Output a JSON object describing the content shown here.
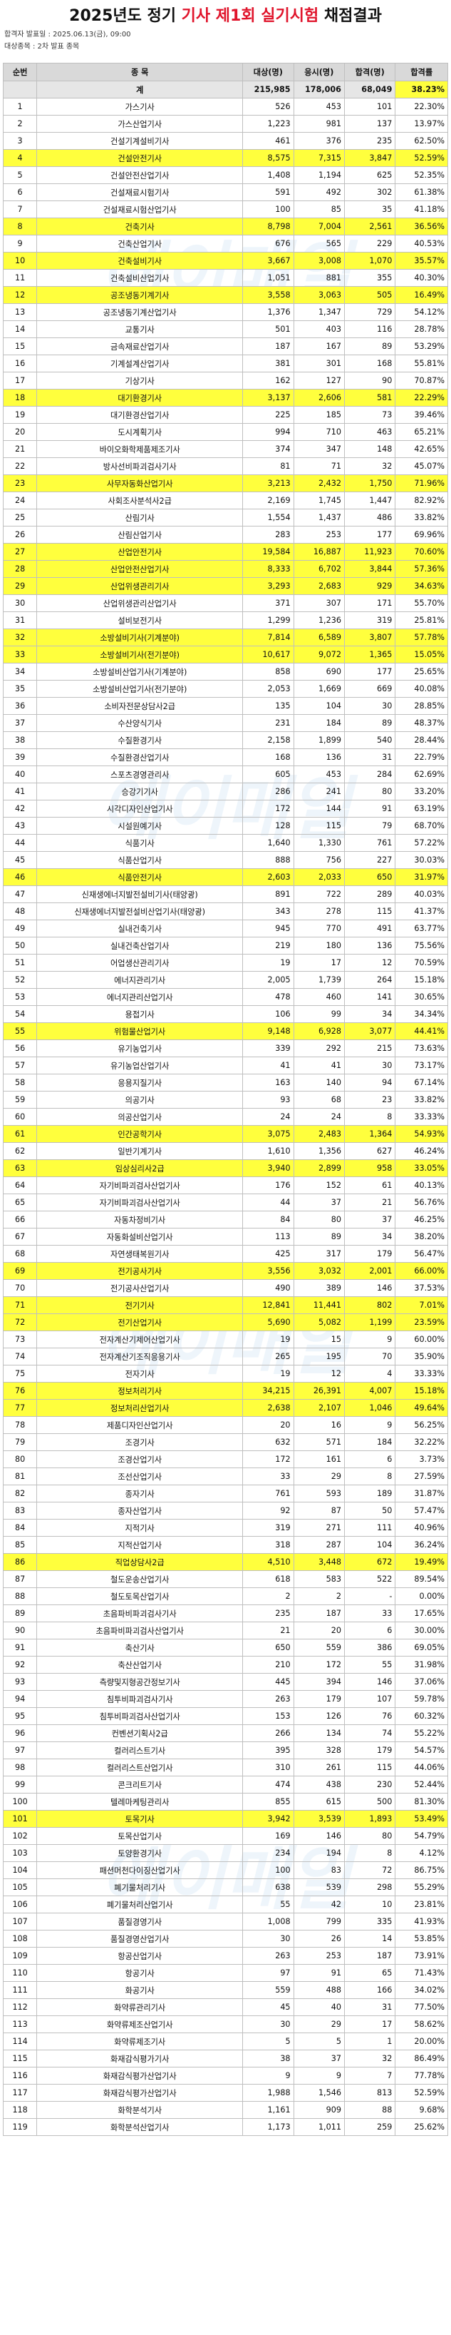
{
  "title": {
    "pre": "2025년도 정기 ",
    "red": "기사 제1회 실기시험",
    "post": " 채점결과"
  },
  "meta": {
    "line1": "합격자 발표일 : 2025.06.13(금), 09:00",
    "line2": "대상종목 : 2차 발표 종목"
  },
  "watermark": "에이매일",
  "columns": {
    "no": "순번",
    "name": "종 목",
    "applied": "대상(명)",
    "tested": "응시(명)",
    "passed": "합격(명)",
    "rate": "합격률"
  },
  "total": {
    "name": "계",
    "applied": "215,985",
    "tested": "178,006",
    "passed": "68,049",
    "rate": "38.23%"
  },
  "highlight_color": "#ffff3d",
  "rows": [
    [
      "1",
      "가스기사",
      "526",
      "453",
      "101",
      "22.30%",
      0
    ],
    [
      "2",
      "가스산업기사",
      "1,223",
      "981",
      "137",
      "13.97%",
      0
    ],
    [
      "3",
      "건설기계설비기사",
      "461",
      "376",
      "235",
      "62.50%",
      0
    ],
    [
      "4",
      "건설안전기사",
      "8,575",
      "7,315",
      "3,847",
      "52.59%",
      1
    ],
    [
      "5",
      "건설안전산업기사",
      "1,408",
      "1,194",
      "625",
      "52.35%",
      0
    ],
    [
      "6",
      "건설재료시험기사",
      "591",
      "492",
      "302",
      "61.38%",
      0
    ],
    [
      "7",
      "건설재료시험산업기사",
      "100",
      "85",
      "35",
      "41.18%",
      0
    ],
    [
      "8",
      "건축기사",
      "8,798",
      "7,004",
      "2,561",
      "36.56%",
      1
    ],
    [
      "9",
      "건축산업기사",
      "676",
      "565",
      "229",
      "40.53%",
      0
    ],
    [
      "10",
      "건축설비기사",
      "3,667",
      "3,008",
      "1,070",
      "35.57%",
      1
    ],
    [
      "11",
      "건축설비산업기사",
      "1,051",
      "881",
      "355",
      "40.30%",
      0
    ],
    [
      "12",
      "공조냉동기계기사",
      "3,558",
      "3,063",
      "505",
      "16.49%",
      1
    ],
    [
      "13",
      "공조냉동기계산업기사",
      "1,376",
      "1,347",
      "729",
      "54.12%",
      0
    ],
    [
      "14",
      "교통기사",
      "501",
      "403",
      "116",
      "28.78%",
      0
    ],
    [
      "15",
      "금속재료산업기사",
      "187",
      "167",
      "89",
      "53.29%",
      0
    ],
    [
      "16",
      "기계설계산업기사",
      "381",
      "301",
      "168",
      "55.81%",
      0
    ],
    [
      "17",
      "기상기사",
      "162",
      "127",
      "90",
      "70.87%",
      0
    ],
    [
      "18",
      "대기환경기사",
      "3,137",
      "2,606",
      "581",
      "22.29%",
      1
    ],
    [
      "19",
      "대기환경산업기사",
      "225",
      "185",
      "73",
      "39.46%",
      0
    ],
    [
      "20",
      "도시계획기사",
      "994",
      "710",
      "463",
      "65.21%",
      0
    ],
    [
      "21",
      "바이오화학제품제조기사",
      "374",
      "347",
      "148",
      "42.65%",
      0
    ],
    [
      "22",
      "방사선비파괴검사기사",
      "81",
      "71",
      "32",
      "45.07%",
      0
    ],
    [
      "23",
      "사무자동화산업기사",
      "3,213",
      "2,432",
      "1,750",
      "71.96%",
      1
    ],
    [
      "24",
      "사회조사분석사2급",
      "2,169",
      "1,745",
      "1,447",
      "82.92%",
      0
    ],
    [
      "25",
      "산림기사",
      "1,554",
      "1,437",
      "486",
      "33.82%",
      0
    ],
    [
      "26",
      "산림산업기사",
      "283",
      "253",
      "177",
      "69.96%",
      0
    ],
    [
      "27",
      "산업안전기사",
      "19,584",
      "16,887",
      "11,923",
      "70.60%",
      1
    ],
    [
      "28",
      "산업안전산업기사",
      "8,333",
      "6,702",
      "3,844",
      "57.36%",
      1
    ],
    [
      "29",
      "산업위생관리기사",
      "3,293",
      "2,683",
      "929",
      "34.63%",
      1
    ],
    [
      "30",
      "산업위생관리산업기사",
      "371",
      "307",
      "171",
      "55.70%",
      0
    ],
    [
      "31",
      "설비보전기사",
      "1,299",
      "1,236",
      "319",
      "25.81%",
      0
    ],
    [
      "32",
      "소방설비기사(기계분야)",
      "7,814",
      "6,589",
      "3,807",
      "57.78%",
      1
    ],
    [
      "33",
      "소방설비기사(전기분야)",
      "10,617",
      "9,072",
      "1,365",
      "15.05%",
      1
    ],
    [
      "34",
      "소방설비산업기사(기계분야)",
      "858",
      "690",
      "177",
      "25.65%",
      0
    ],
    [
      "35",
      "소방설비산업기사(전기분야)",
      "2,053",
      "1,669",
      "669",
      "40.08%",
      0
    ],
    [
      "36",
      "소비자전문상담사2급",
      "135",
      "104",
      "30",
      "28.85%",
      0
    ],
    [
      "37",
      "수산양식기사",
      "231",
      "184",
      "89",
      "48.37%",
      0
    ],
    [
      "38",
      "수질환경기사",
      "2,158",
      "1,899",
      "540",
      "28.44%",
      0
    ],
    [
      "39",
      "수질환경산업기사",
      "168",
      "136",
      "31",
      "22.79%",
      0
    ],
    [
      "40",
      "스포츠경영관리사",
      "605",
      "453",
      "284",
      "62.69%",
      0
    ],
    [
      "41",
      "승강기기사",
      "286",
      "241",
      "80",
      "33.20%",
      0
    ],
    [
      "42",
      "시각디자인산업기사",
      "172",
      "144",
      "91",
      "63.19%",
      0
    ],
    [
      "43",
      "시설원예기사",
      "128",
      "115",
      "79",
      "68.70%",
      0
    ],
    [
      "44",
      "식품기사",
      "1,640",
      "1,330",
      "761",
      "57.22%",
      0
    ],
    [
      "45",
      "식품산업기사",
      "888",
      "756",
      "227",
      "30.03%",
      0
    ],
    [
      "46",
      "식품안전기사",
      "2,603",
      "2,033",
      "650",
      "31.97%",
      1
    ],
    [
      "47",
      "신재생에너지발전설비기사(태양광)",
      "891",
      "722",
      "289",
      "40.03%",
      0
    ],
    [
      "48",
      "신재생에너지발전설비산업기사(태양광)",
      "343",
      "278",
      "115",
      "41.37%",
      0
    ],
    [
      "49",
      "실내건축기사",
      "945",
      "770",
      "491",
      "63.77%",
      0
    ],
    [
      "50",
      "실내건축산업기사",
      "219",
      "180",
      "136",
      "75.56%",
      0
    ],
    [
      "51",
      "어업생산관리기사",
      "19",
      "17",
      "12",
      "70.59%",
      0
    ],
    [
      "52",
      "에너지관리기사",
      "2,005",
      "1,739",
      "264",
      "15.18%",
      0
    ],
    [
      "53",
      "에너지관리산업기사",
      "478",
      "460",
      "141",
      "30.65%",
      0
    ],
    [
      "54",
      "용접기사",
      "106",
      "99",
      "34",
      "34.34%",
      0
    ],
    [
      "55",
      "위험물산업기사",
      "9,148",
      "6,928",
      "3,077",
      "44.41%",
      1
    ],
    [
      "56",
      "유기농업기사",
      "339",
      "292",
      "215",
      "73.63%",
      0
    ],
    [
      "57",
      "유기농업산업기사",
      "41",
      "41",
      "30",
      "73.17%",
      0
    ],
    [
      "58",
      "응용지질기사",
      "163",
      "140",
      "94",
      "67.14%",
      0
    ],
    [
      "59",
      "의공기사",
      "93",
      "68",
      "23",
      "33.82%",
      0
    ],
    [
      "60",
      "의공산업기사",
      "24",
      "24",
      "8",
      "33.33%",
      0
    ],
    [
      "61",
      "인간공학기사",
      "3,075",
      "2,483",
      "1,364",
      "54.93%",
      1
    ],
    [
      "62",
      "일반기계기사",
      "1,610",
      "1,356",
      "627",
      "46.24%",
      0
    ],
    [
      "63",
      "임상심리사2급",
      "3,940",
      "2,899",
      "958",
      "33.05%",
      1
    ],
    [
      "64",
      "자기비파괴검사산업기사",
      "176",
      "152",
      "61",
      "40.13%",
      0
    ],
    [
      "65",
      "자기비파괴검사산업기사",
      "44",
      "37",
      "21",
      "56.76%",
      0
    ],
    [
      "66",
      "자동차정비기사",
      "84",
      "80",
      "37",
      "46.25%",
      0
    ],
    [
      "67",
      "자동화설비산업기사",
      "113",
      "89",
      "34",
      "38.20%",
      0
    ],
    [
      "68",
      "자연생태복원기사",
      "425",
      "317",
      "179",
      "56.47%",
      0
    ],
    [
      "69",
      "전기공사기사",
      "3,556",
      "3,032",
      "2,001",
      "66.00%",
      1
    ],
    [
      "70",
      "전기공사산업기사",
      "490",
      "389",
      "146",
      "37.53%",
      0
    ],
    [
      "71",
      "전기기사",
      "12,841",
      "11,441",
      "802",
      "7.01%",
      1
    ],
    [
      "72",
      "전기산업기사",
      "5,690",
      "5,082",
      "1,199",
      "23.59%",
      1
    ],
    [
      "73",
      "전자계산기제어산업기사",
      "19",
      "15",
      "9",
      "60.00%",
      0
    ],
    [
      "74",
      "전자계산기조직응용기사",
      "265",
      "195",
      "70",
      "35.90%",
      0
    ],
    [
      "75",
      "전자기사",
      "19",
      "12",
      "4",
      "33.33%",
      0
    ],
    [
      "76",
      "정보처리기사",
      "34,215",
      "26,391",
      "4,007",
      "15.18%",
      1
    ],
    [
      "77",
      "정보처리산업기사",
      "2,638",
      "2,107",
      "1,046",
      "49.64%",
      1
    ],
    [
      "78",
      "제품디자인산업기사",
      "20",
      "16",
      "9",
      "56.25%",
      0
    ],
    [
      "79",
      "조경기사",
      "632",
      "571",
      "184",
      "32.22%",
      0
    ],
    [
      "80",
      "조경산업기사",
      "172",
      "161",
      "6",
      "3.73%",
      0
    ],
    [
      "81",
      "조선산업기사",
      "33",
      "29",
      "8",
      "27.59%",
      0
    ],
    [
      "82",
      "종자기사",
      "761",
      "593",
      "189",
      "31.87%",
      0
    ],
    [
      "83",
      "종자산업기사",
      "92",
      "87",
      "50",
      "57.47%",
      0
    ],
    [
      "84",
      "지적기사",
      "319",
      "271",
      "111",
      "40.96%",
      0
    ],
    [
      "85",
      "지적산업기사",
      "318",
      "287",
      "104",
      "36.24%",
      0
    ],
    [
      "86",
      "직업상담사2급",
      "4,510",
      "3,448",
      "672",
      "19.49%",
      1
    ],
    [
      "87",
      "철도운송산업기사",
      "618",
      "583",
      "522",
      "89.54%",
      0
    ],
    [
      "88",
      "철도토목산업기사",
      "2",
      "2",
      "-",
      "0.00%",
      0
    ],
    [
      "89",
      "초음파비파괴검사기사",
      "235",
      "187",
      "33",
      "17.65%",
      0
    ],
    [
      "90",
      "초음파비파괴검사산업기사",
      "21",
      "20",
      "6",
      "30.00%",
      0
    ],
    [
      "91",
      "축산기사",
      "650",
      "559",
      "386",
      "69.05%",
      0
    ],
    [
      "92",
      "축산산업기사",
      "210",
      "172",
      "55",
      "31.98%",
      0
    ],
    [
      "93",
      "측량및지형공간정보기사",
      "445",
      "394",
      "146",
      "37.06%",
      0
    ],
    [
      "94",
      "침투비파괴검사기사",
      "263",
      "179",
      "107",
      "59.78%",
      0
    ],
    [
      "95",
      "침투비파괴검사산업기사",
      "153",
      "126",
      "76",
      "60.32%",
      0
    ],
    [
      "96",
      "컨벤션기획사2급",
      "266",
      "134",
      "74",
      "55.22%",
      0
    ],
    [
      "97",
      "컬러리스트기사",
      "395",
      "328",
      "179",
      "54.57%",
      0
    ],
    [
      "98",
      "컬러리스트산업기사",
      "310",
      "261",
      "115",
      "44.06%",
      0
    ],
    [
      "99",
      "콘크리트기사",
      "474",
      "438",
      "230",
      "52.44%",
      0
    ],
    [
      "100",
      "텔레마케팅관리사",
      "855",
      "615",
      "500",
      "81.30%",
      0
    ],
    [
      "101",
      "토목기사",
      "3,942",
      "3,539",
      "1,893",
      "53.49%",
      1
    ],
    [
      "102",
      "토목산업기사",
      "169",
      "146",
      "80",
      "54.79%",
      0
    ],
    [
      "103",
      "토양환경기사",
      "234",
      "194",
      "8",
      "4.12%",
      0
    ],
    [
      "104",
      "패션머천다이징산업기사",
      "100",
      "83",
      "72",
      "86.75%",
      0
    ],
    [
      "105",
      "폐기물처리기사",
      "638",
      "539",
      "298",
      "55.29%",
      0
    ],
    [
      "106",
      "폐기물처리산업기사",
      "55",
      "42",
      "10",
      "23.81%",
      0
    ],
    [
      "107",
      "품질경영기사",
      "1,008",
      "799",
      "335",
      "41.93%",
      0
    ],
    [
      "108",
      "품질경영산업기사",
      "30",
      "26",
      "14",
      "53.85%",
      0
    ],
    [
      "109",
      "항공산업기사",
      "263",
      "253",
      "187",
      "73.91%",
      0
    ],
    [
      "110",
      "항공기사",
      "97",
      "91",
      "65",
      "71.43%",
      0
    ],
    [
      "111",
      "화공기사",
      "559",
      "488",
      "166",
      "34.02%",
      0
    ],
    [
      "112",
      "화약류관리기사",
      "45",
      "40",
      "31",
      "77.50%",
      0
    ],
    [
      "113",
      "화약류제조산업기사",
      "30",
      "29",
      "17",
      "58.62%",
      0
    ],
    [
      "114",
      "화약류제조기사",
      "5",
      "5",
      "1",
      "20.00%",
      0
    ],
    [
      "115",
      "화재감식평가기사",
      "38",
      "37",
      "32",
      "86.49%",
      0
    ],
    [
      "116",
      "화재감식평가산업기사",
      "9",
      "9",
      "7",
      "77.78%",
      0
    ],
    [
      "117",
      "화재감식평가산업기사",
      "1,988",
      "1,546",
      "813",
      "52.59%",
      0
    ],
    [
      "118",
      "화학분석기사",
      "1,161",
      "909",
      "88",
      "9.68%",
      0
    ],
    [
      "119",
      "화학분석산업기사",
      "1,173",
      "1,011",
      "259",
      "25.62%",
      0
    ]
  ]
}
